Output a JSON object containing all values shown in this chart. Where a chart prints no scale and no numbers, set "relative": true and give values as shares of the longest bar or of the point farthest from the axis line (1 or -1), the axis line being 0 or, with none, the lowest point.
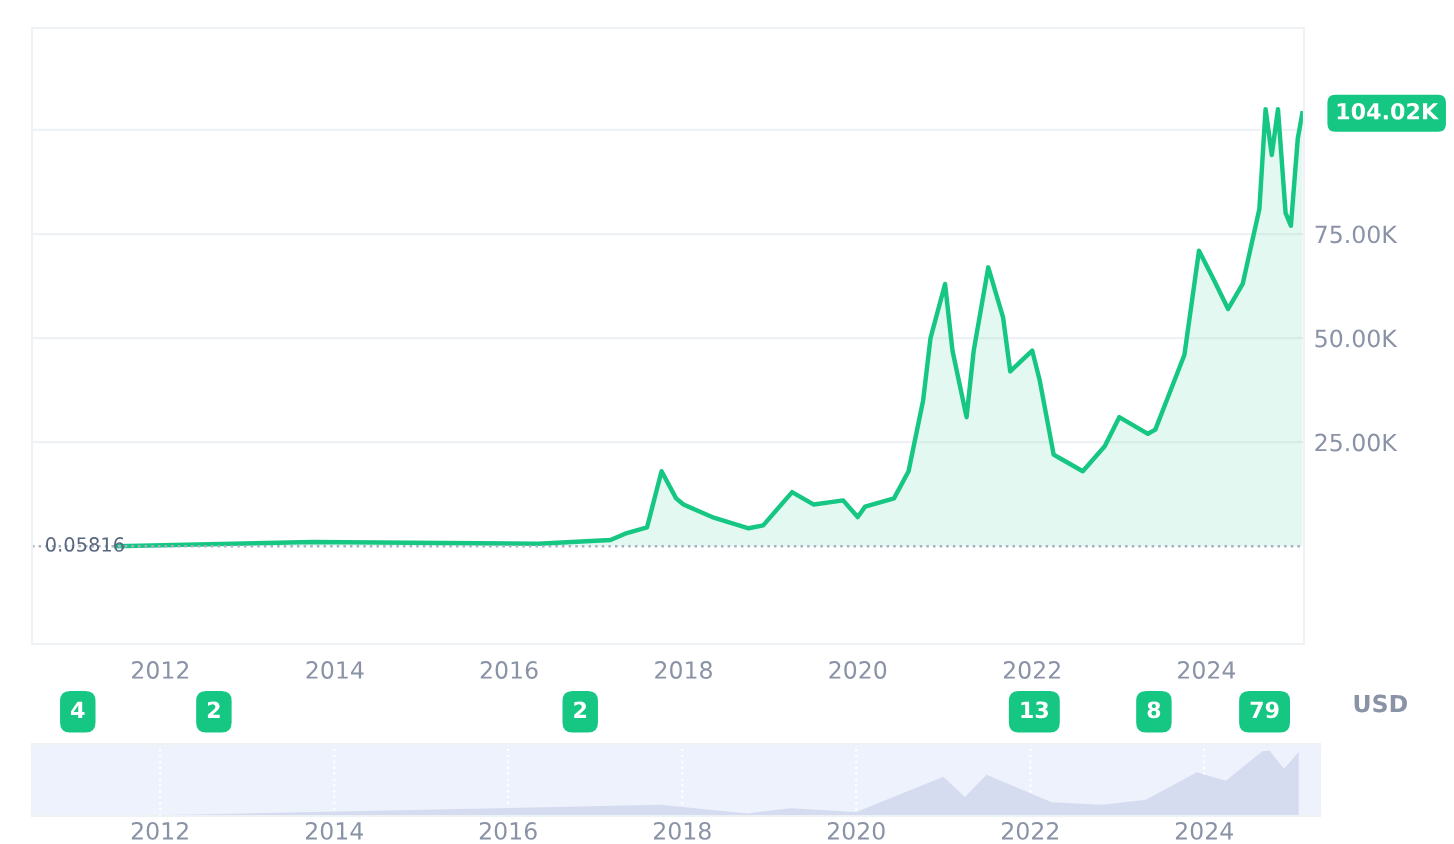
{
  "chart_data": [
    {
      "type": "area",
      "x": [
        "2011-07",
        "2013-10",
        "2016-05",
        "2017-03",
        "2017-05",
        "2017-08",
        "2017-10",
        "2017-12",
        "2018-01",
        "2018-05",
        "2018-10",
        "2018-12",
        "2019-04",
        "2019-07",
        "2019-11",
        "2020-01",
        "2020-02",
        "2020-06",
        "2020-08",
        "2020-10",
        "2020-11",
        "2021-01",
        "2021-02",
        "2021-04",
        "2021-05",
        "2021-07",
        "2021-09",
        "2021-10",
        "2022-01",
        "2022-02",
        "2022-04",
        "2022-05",
        "2022-08",
        "2022-11",
        "2023-01",
        "2023-05",
        "2023-06",
        "2023-08",
        "2023-10",
        "2023-12",
        "2024-02",
        "2024-04",
        "2024-06",
        "2024-08-10",
        "2024-09-05",
        "2024-10-01",
        "2024-10-27",
        "2024-11-28",
        "2024-12-20",
        "2025-01-18",
        "2025-02-06"
      ],
      "series": [
        {
          "color": "#16c784",
          "values": [
            0,
            1000,
            600,
            1500,
            3000,
            4500,
            18000,
            11500,
            10000,
            7000,
            4300,
            5000,
            13000,
            10000,
            11000,
            7000,
            9500,
            11500,
            18000,
            35000,
            50000,
            63000,
            47000,
            31000,
            47000,
            67000,
            55000,
            42000,
            47000,
            40000,
            22000,
            21000,
            18000,
            24000,
            31000,
            27000,
            28000,
            37000,
            46000,
            71000,
            64000,
            57000,
            63000,
            81000,
            105000,
            94000,
            105000,
            80000,
            77000,
            98000,
            104020
          ]
        }
      ],
      "xlim": [
        "2010-07-12",
        "2025-02-13"
      ],
      "xticks": [
        {
          "value": "2012-01-01",
          "label": "2012"
        },
        {
          "value": "2014-01-01",
          "label": "2014"
        },
        {
          "value": "2016-01-01",
          "label": "2016"
        },
        {
          "value": "2018-01-01",
          "label": "2018"
        },
        {
          "value": "2020-01-01",
          "label": "2020"
        },
        {
          "value": "2022-01-01",
          "label": "2022"
        },
        {
          "value": "2024-01-01",
          "label": "2024"
        }
      ],
      "ylim": [
        -23500,
        124500
      ],
      "yticks": [
        {
          "value": 25000,
          "label": "25.00K"
        },
        {
          "value": 50000,
          "label": "50.00K"
        },
        {
          "value": 75000,
          "label": "75.00K"
        },
        {
          "value": 100000,
          "label": null
        }
      ],
      "grid": "y",
      "ref_lines": [
        {
          "axis": "y",
          "value": 0.05816,
          "label": "0.05816",
          "line_style": "dotted",
          "color": "#a6b0c3"
        }
      ],
      "annotations": [
        {
          "text": "104.02K",
          "x": "2025-02-06",
          "y": 104020
        },
        "USD",
        "4",
        "2",
        "2",
        "13",
        "8",
        "79"
      ]
    },
    {
      "type": "area",
      "relative": true,
      "x": [
        "2011-07",
        "2017-10",
        "2018-10",
        "2019-04",
        "2020-01",
        "2021-01",
        "2021-04",
        "2021-07",
        "2022-04",
        "2022-11",
        "2023-05",
        "2023-12",
        "2024-04",
        "2024-09",
        "2024-10",
        "2024-12",
        "2025-02"
      ],
      "series": [
        {
          "color": "#d5dcef",
          "values": [
            0,
            0.17,
            0.04,
            0.12,
            0.06,
            0.6,
            0.29,
            0.63,
            0.21,
            0.17,
            0.25,
            0.67,
            0.54,
            0.99,
            1,
            0.72,
            0.98
          ]
        }
      ],
      "xlim": [
        "2010-07-12",
        "2025-05-01"
      ],
      "xticks": [
        {
          "value": "2012-01-01",
          "label": "2012"
        },
        {
          "value": "2014-01-01",
          "label": "2014"
        },
        {
          "value": "2016-01-01",
          "label": "2016"
        },
        {
          "value": "2018-01-01",
          "label": "2018"
        },
        {
          "value": "2020-01-01",
          "label": "2020"
        },
        {
          "value": "2022-01-01",
          "label": "2022"
        },
        {
          "value": "2024-01-01",
          "label": "2024"
        }
      ],
      "grid": "x"
    }
  ]
}
